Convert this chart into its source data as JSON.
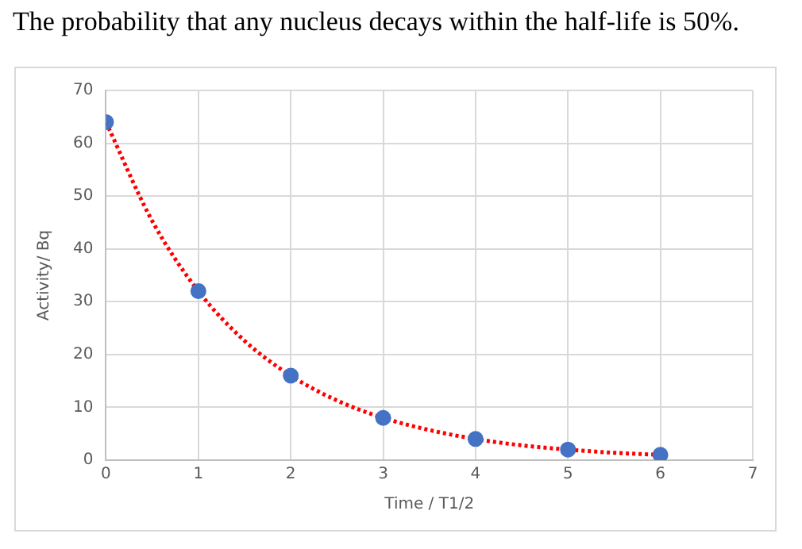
{
  "chart_data": {
    "type": "scatter",
    "title": "The probability that any nucleus decays within the half-life is 50%.",
    "xlabel": "Time / T1/2",
    "ylabel": "Activity/ Bq",
    "xlim": [
      0,
      7
    ],
    "xticks": [
      0,
      1,
      2,
      3,
      4,
      5,
      6,
      7
    ],
    "ylim": [
      0,
      70
    ],
    "yticks": [
      0,
      10,
      20,
      30,
      40,
      50,
      60,
      70
    ],
    "grid": true,
    "legend": false,
    "marker": "circle",
    "series": [
      {
        "type": "line",
        "color": "#ff0000",
        "line_style": "dotted",
        "marker": "none",
        "x": [
          0,
          0.5,
          1,
          1.5,
          2,
          2.5,
          3,
          3.5,
          4,
          4.5,
          5,
          5.5,
          6
        ],
        "values": [
          64,
          45.3,
          32,
          22.6,
          16,
          11.3,
          8,
          5.7,
          4,
          2.8,
          2,
          1.4,
          1
        ]
      },
      {
        "color": "#4472c4",
        "x": [
          0,
          1,
          2,
          3,
          4,
          5,
          6
        ],
        "values": [
          64,
          32,
          16,
          8,
          4,
          2,
          1
        ]
      }
    ]
  }
}
